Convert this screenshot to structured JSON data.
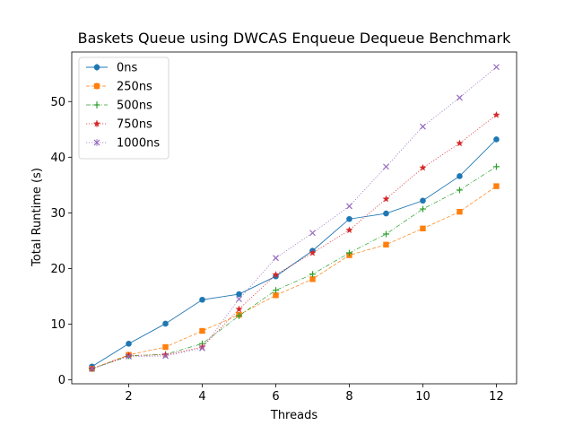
{
  "chart_data": {
    "type": "line",
    "title": "Baskets Queue using DWCAS Enqueue Dequeue Benchmark",
    "xlabel": "Threads",
    "ylabel": "Total Runtime (s)",
    "xlim": [
      0.45,
      12.55
    ],
    "ylim": [
      -0.7,
      58.9
    ],
    "xticks": [
      2,
      4,
      6,
      8,
      10,
      12
    ],
    "yticks": [
      0,
      10,
      20,
      30,
      40,
      50
    ],
    "grid": false,
    "legend_position": "top-left",
    "x": [
      1,
      2,
      3,
      4,
      5,
      6,
      7,
      8,
      9,
      10,
      11,
      12
    ],
    "series": [
      {
        "name": "0ns",
        "color": "#1f77b4",
        "marker": "circle",
        "line": "solid",
        "values": [
          2.4,
          6.5,
          10.1,
          14.4,
          15.4,
          18.6,
          23.2,
          28.9,
          29.9,
          32.2,
          36.6,
          43.2
        ]
      },
      {
        "name": "250ns",
        "color": "#ff7f0e",
        "marker": "square",
        "line": "dashed",
        "values": [
          2.0,
          4.5,
          5.9,
          8.8,
          11.7,
          15.2,
          18.1,
          22.4,
          24.3,
          27.2,
          30.2,
          34.8
        ]
      },
      {
        "name": "500ns",
        "color": "#2ca02c",
        "marker": "plus",
        "line": "dashdot",
        "values": [
          2.0,
          4.3,
          4.6,
          6.5,
          11.5,
          16.1,
          19.0,
          22.8,
          26.2,
          30.7,
          34.1,
          38.3
        ]
      },
      {
        "name": "750ns",
        "color": "#d62728",
        "marker": "star",
        "line": "dotted",
        "values": [
          2.0,
          4.4,
          4.5,
          5.9,
          12.7,
          18.9,
          22.8,
          26.9,
          32.5,
          38.1,
          42.5,
          47.6
        ]
      },
      {
        "name": "1000ns",
        "color": "#9467bd",
        "marker": "x",
        "line": "dotted",
        "values": [
          2.0,
          4.2,
          4.3,
          5.7,
          14.5,
          21.9,
          26.4,
          31.2,
          38.3,
          45.5,
          50.7,
          56.2
        ]
      }
    ]
  }
}
